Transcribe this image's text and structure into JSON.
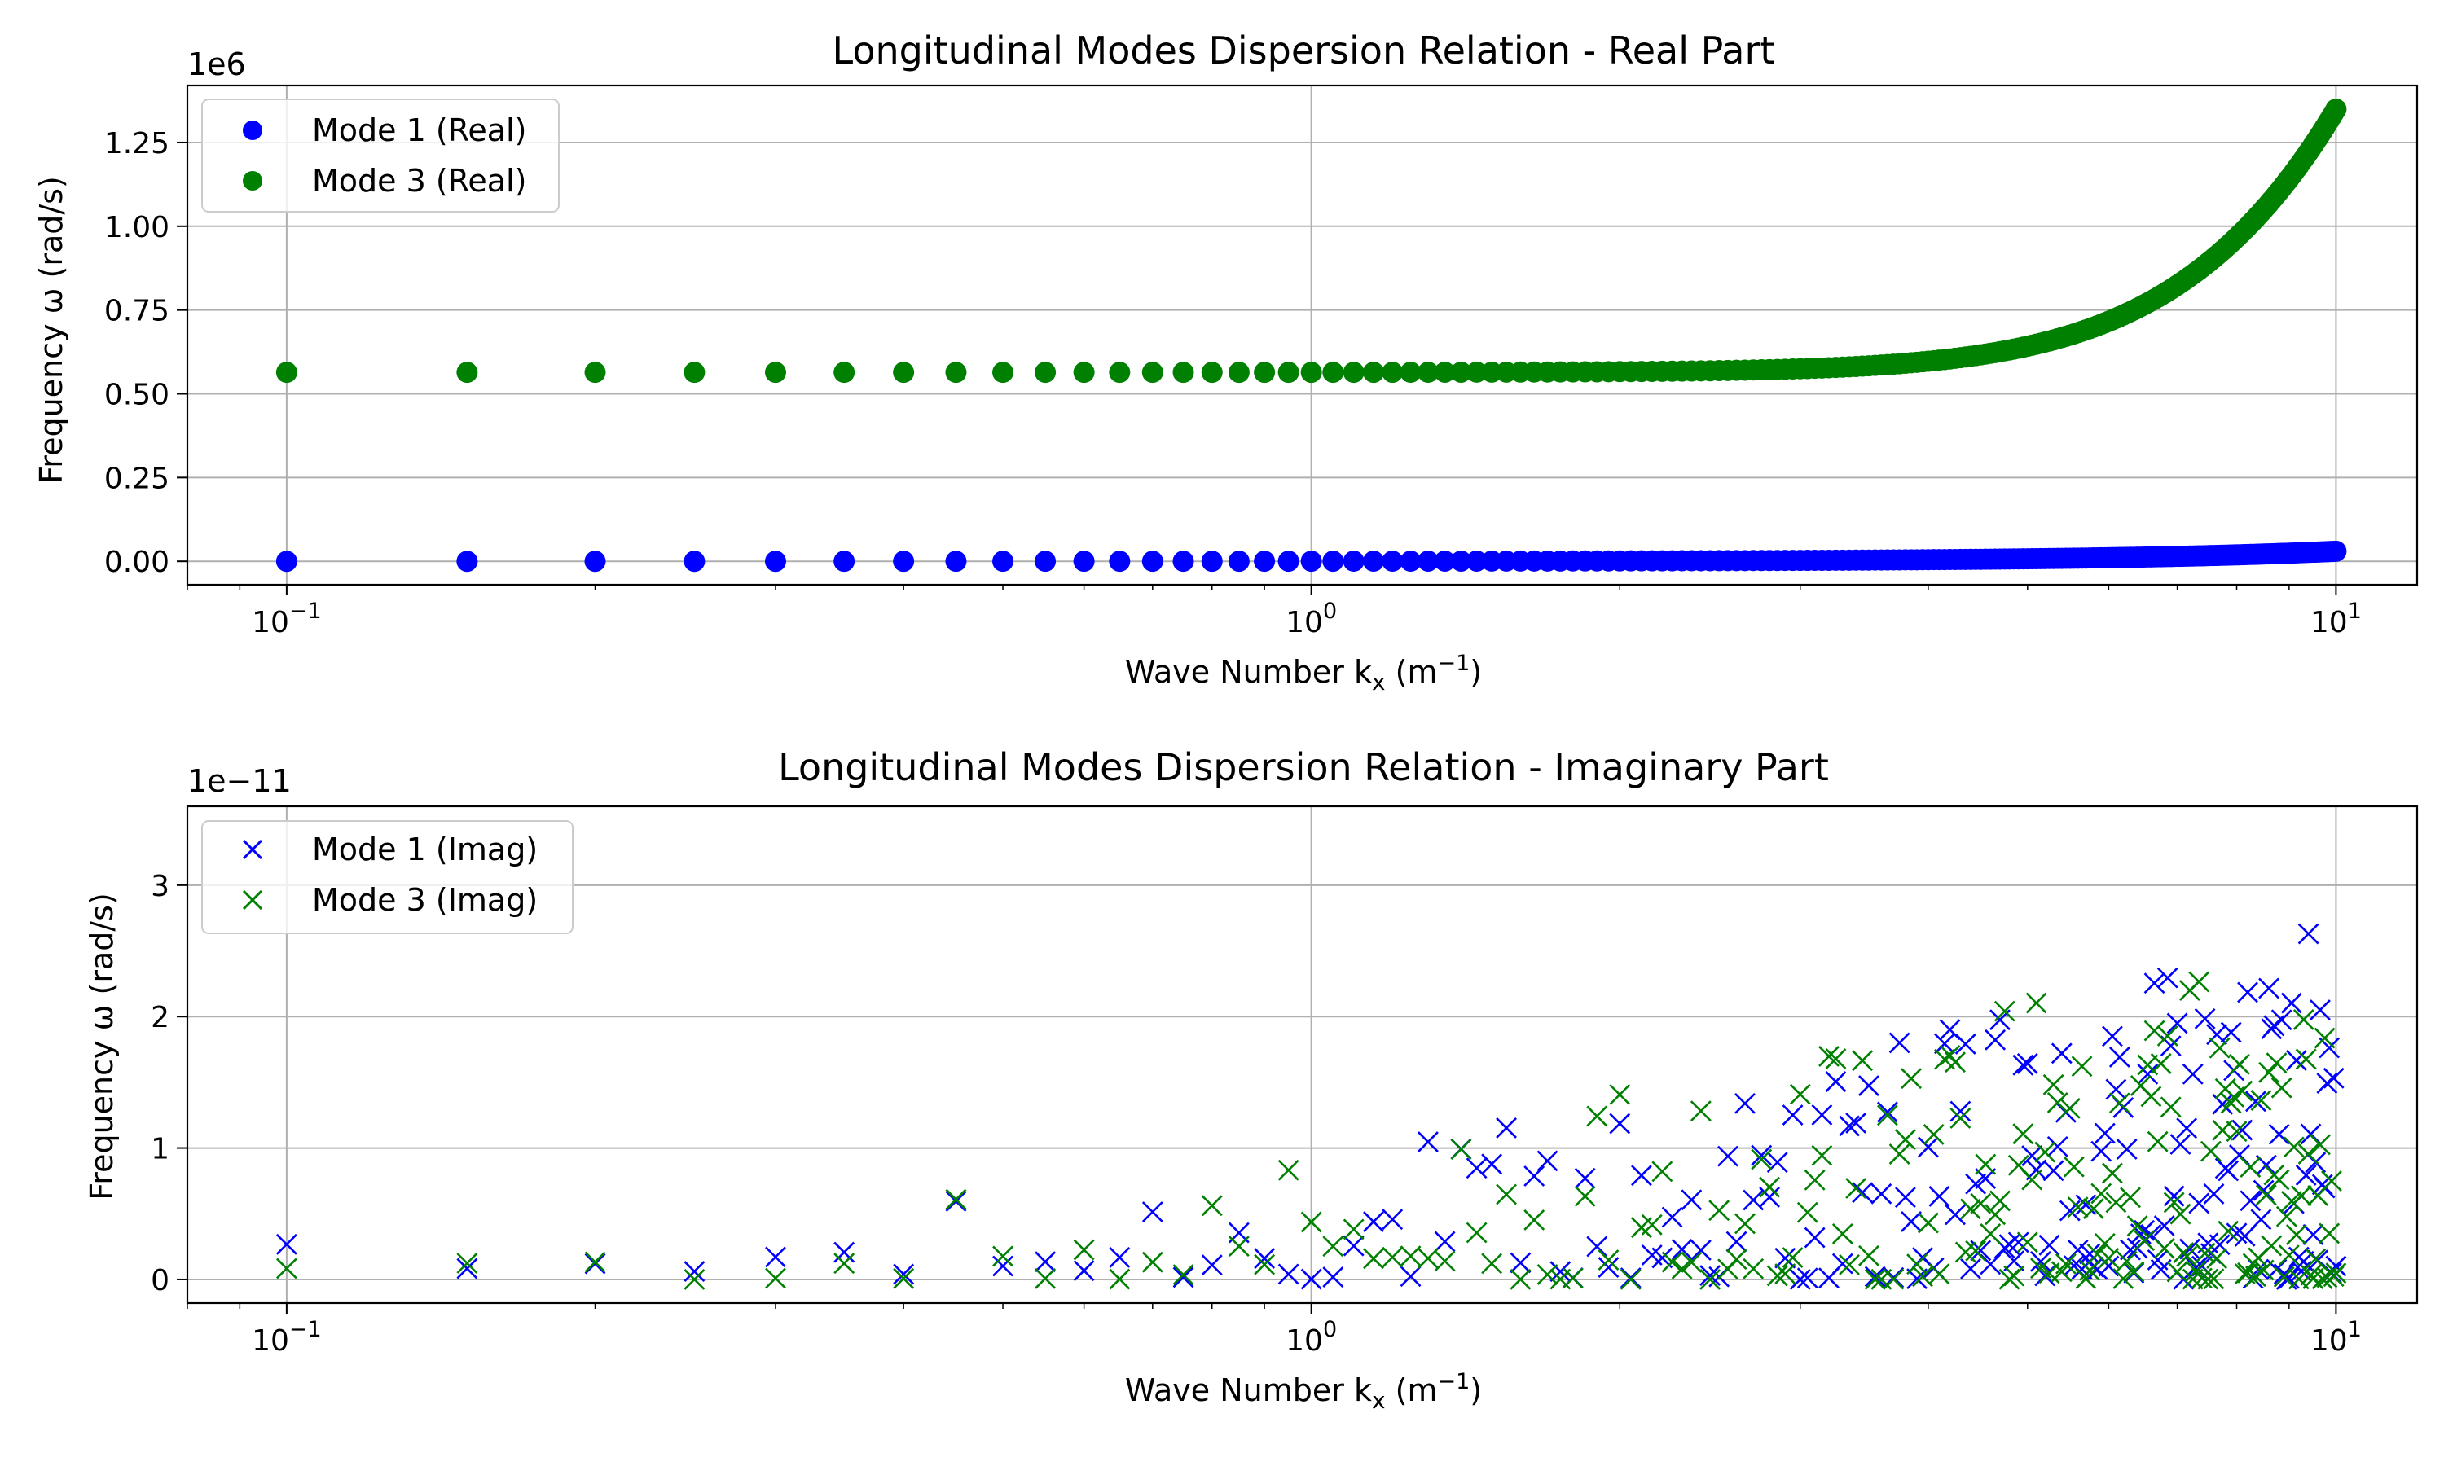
{
  "chart_data": [
    {
      "type": "scatter",
      "title": "Longitudinal Modes Dispersion Relation - Real Part",
      "xlabel": {
        "main": "Wave Number k",
        "sub": "x",
        "unit_open": " (m",
        "unit_sup": "−1",
        "unit_close": ")"
      },
      "ylabel": "Frequency ω (rad/s)",
      "x_scale": "log",
      "xlim": [
        0.08,
        12
      ],
      "ylim": [
        -70000,
        1420000
      ],
      "y_offset_text": "1e6",
      "grid": true,
      "legend_position": "upper left",
      "x_ticks": [
        {
          "value": 0.1,
          "base": "10",
          "exp": "−1"
        },
        {
          "value": 1,
          "base": "10",
          "exp": "0"
        },
        {
          "value": 10,
          "base": "10",
          "exp": "1"
        }
      ],
      "y_ticks": [
        {
          "value": 0,
          "label": "0.00"
        },
        {
          "value": 250000,
          "label": "0.25"
        },
        {
          "value": 500000,
          "label": "0.50"
        },
        {
          "value": 750000,
          "label": "0.75"
        },
        {
          "value": 1000000,
          "label": "1.00"
        },
        {
          "value": 1250000,
          "label": "1.25"
        }
      ],
      "x_range": [
        0.1,
        10
      ],
      "x_step": 0.05,
      "series": [
        {
          "name": "Mode 1 (Real)",
          "color": "#0000ff",
          "marker": "circle",
          "model": "quadratic",
          "coeff": 300
        },
        {
          "name": "Mode 3 (Real)",
          "color": "#008000",
          "marker": "circle",
          "model": "sqrt_quadratic",
          "base": 564000,
          "coeff": 12260
        }
      ]
    },
    {
      "type": "scatter",
      "title": "Longitudinal Modes Dispersion Relation - Imaginary Part",
      "xlabel": {
        "main": "Wave Number k",
        "sub": "x",
        "unit_open": " (m",
        "unit_sup": "−1",
        "unit_close": ")"
      },
      "ylabel": "Frequency ω (rad/s)",
      "x_scale": "log",
      "xlim": [
        0.08,
        12
      ],
      "ylim": [
        -1.8e-12,
        3.6e-11
      ],
      "y_offset_text": "1e−11",
      "grid": true,
      "legend_position": "upper left",
      "x_ticks": [
        {
          "value": 0.1,
          "base": "10",
          "exp": "−1"
        },
        {
          "value": 1,
          "base": "10",
          "exp": "0"
        },
        {
          "value": 10,
          "base": "10",
          "exp": "1"
        }
      ],
      "y_ticks": [
        {
          "value": 0,
          "label": "0"
        },
        {
          "value": 1e-11,
          "label": "1"
        },
        {
          "value": 2e-11,
          "label": "2"
        },
        {
          "value": 3e-11,
          "label": "3"
        }
      ],
      "x_range": [
        0.1,
        10
      ],
      "x_step": 0.05,
      "noise_scale": 1e-11,
      "series": [
        {
          "name": "Mode 1 (Imag)",
          "color": "#0000ff",
          "marker": "x",
          "seed": 1234567
        },
        {
          "name": "Mode 3 (Imag)",
          "color": "#008000",
          "marker": "x",
          "seed": 7654321
        }
      ]
    }
  ]
}
